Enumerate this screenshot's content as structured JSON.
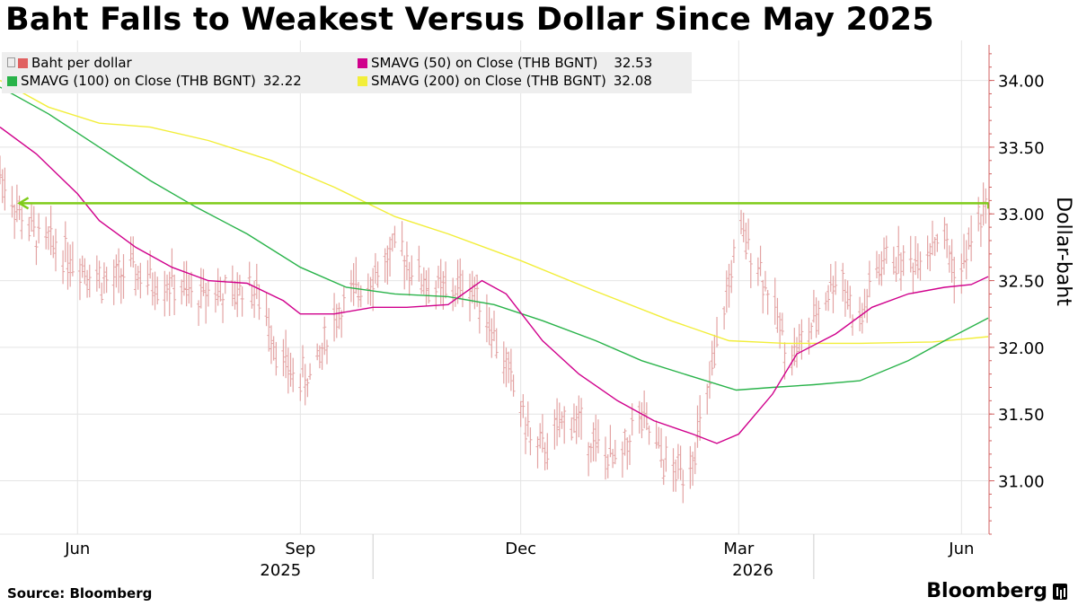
{
  "title": "Baht Falls to Weakest Versus Dollar Since May 2025",
  "source": "Source: Bloomberg",
  "brand": "Bloomberg",
  "chart_data": {
    "type": "line",
    "ylabel": "Dollar-baht",
    "ylim": [
      30.6,
      34.3
    ],
    "yticks": [
      31.0,
      31.5,
      32.0,
      32.5,
      33.0,
      33.5,
      34.0
    ],
    "ytick_labels": [
      "31.00",
      "31.50",
      "32.00",
      "32.50",
      "33.00",
      "33.50",
      "34.00"
    ],
    "x_range": [
      "2025-04-30",
      "2026-06-12"
    ],
    "month_ticks": [
      {
        "date": "2025-06-01",
        "label": "Jun"
      },
      {
        "date": "2025-09-01",
        "label": "Sep"
      },
      {
        "date": "2025-12-01",
        "label": "Dec"
      },
      {
        "date": "2026-03-01",
        "label": "Mar"
      },
      {
        "date": "2026-06-01",
        "label": "Jun"
      }
    ],
    "year_labels": [
      {
        "date": "2025-09-01",
        "label": "2025"
      },
      {
        "date": "2026-03-15",
        "label": "2026"
      }
    ],
    "year_dividers": [
      "2025-10-01",
      "2026-04-01"
    ],
    "grid": true,
    "reference_line": {
      "value": 33.08,
      "from": "2025-05-08",
      "to": "2026-06-12",
      "color": "#7fcc1a"
    },
    "legend": [
      {
        "name": "Baht per dollar",
        "value": "",
        "color": "#e06060",
        "style": "ohlc"
      },
      {
        "name": "SMAVG (50)  on Close (THB BGNT)",
        "value": "32.53",
        "color": "#d0008c"
      },
      {
        "name": "SMAVG (100)  on Close (THB BGNT)",
        "value": "32.22",
        "color": "#29b34a"
      },
      {
        "name": "SMAVG (200)  on Close (THB BGNT)",
        "value": "32.08",
        "color": "#f2ee3a"
      }
    ],
    "series": [
      {
        "name": "Baht per dollar",
        "kind": "ohlc",
        "color": "#e3a3a3",
        "points": [
          [
            "2025-04-30",
            33.3
          ],
          [
            "2025-05-08",
            33.0
          ],
          [
            "2025-05-16",
            32.8
          ],
          [
            "2025-05-24",
            32.75
          ],
          [
            "2025-06-01",
            32.65
          ],
          [
            "2025-06-08",
            32.55
          ],
          [
            "2025-06-15",
            32.45
          ],
          [
            "2025-06-22",
            32.6
          ],
          [
            "2025-06-29",
            32.5
          ],
          [
            "2025-07-06",
            32.5
          ],
          [
            "2025-07-13",
            32.45
          ],
          [
            "2025-07-20",
            32.35
          ],
          [
            "2025-07-27",
            32.45
          ],
          [
            "2025-08-03",
            32.35
          ],
          [
            "2025-08-10",
            32.5
          ],
          [
            "2025-08-17",
            32.3
          ],
          [
            "2025-08-24",
            31.9
          ],
          [
            "2025-08-31",
            31.75
          ],
          [
            "2025-09-07",
            31.8
          ],
          [
            "2025-09-14",
            32.2
          ],
          [
            "2025-09-21",
            32.35
          ],
          [
            "2025-09-28",
            32.5
          ],
          [
            "2025-10-05",
            32.6
          ],
          [
            "2025-10-12",
            32.75
          ],
          [
            "2025-10-19",
            32.55
          ],
          [
            "2025-10-26",
            32.45
          ],
          [
            "2025-11-02",
            32.4
          ],
          [
            "2025-11-09",
            32.5
          ],
          [
            "2025-11-16",
            32.3
          ],
          [
            "2025-11-23",
            31.95
          ],
          [
            "2025-11-30",
            31.6
          ],
          [
            "2025-12-07",
            31.2
          ],
          [
            "2025-12-14",
            31.3
          ],
          [
            "2025-12-21",
            31.5
          ],
          [
            "2025-12-28",
            31.35
          ],
          [
            "2026-01-04",
            31.2
          ],
          [
            "2026-01-11",
            31.1
          ],
          [
            "2026-01-18",
            31.5
          ],
          [
            "2026-01-25",
            31.3
          ],
          [
            "2026-02-01",
            31.05
          ],
          [
            "2026-02-08",
            31.1
          ],
          [
            "2026-02-15",
            31.5
          ],
          [
            "2026-02-22",
            32.2
          ],
          [
            "2026-03-01",
            32.85
          ],
          [
            "2026-03-08",
            32.7
          ],
          [
            "2026-03-15",
            32.3
          ],
          [
            "2026-03-22",
            31.95
          ],
          [
            "2026-03-29",
            32.05
          ],
          [
            "2026-04-05",
            32.35
          ],
          [
            "2026-04-12",
            32.6
          ],
          [
            "2026-04-19",
            32.1
          ],
          [
            "2026-04-26",
            32.55
          ],
          [
            "2026-05-03",
            32.7
          ],
          [
            "2026-05-10",
            32.6
          ],
          [
            "2026-05-17",
            32.75
          ],
          [
            "2026-05-24",
            32.85
          ],
          [
            "2026-05-31",
            32.5
          ],
          [
            "2026-06-07",
            32.95
          ],
          [
            "2026-06-11",
            33.0
          ]
        ]
      },
      {
        "name": "SMAVG (50)  on Close (THB BGNT)",
        "color": "#d0008c",
        "points": [
          [
            "2025-04-30",
            33.65
          ],
          [
            "2025-05-15",
            33.45
          ],
          [
            "2025-06-01",
            33.15
          ],
          [
            "2025-06-10",
            32.95
          ],
          [
            "2025-06-25",
            32.75
          ],
          [
            "2025-07-10",
            32.6
          ],
          [
            "2025-07-25",
            32.5
          ],
          [
            "2025-08-10",
            32.48
          ],
          [
            "2025-08-25",
            32.35
          ],
          [
            "2025-09-01",
            32.25
          ],
          [
            "2025-09-15",
            32.25
          ],
          [
            "2025-10-01",
            32.3
          ],
          [
            "2025-10-15",
            32.3
          ],
          [
            "2025-11-01",
            32.32
          ],
          [
            "2025-11-15",
            32.5
          ],
          [
            "2025-11-25",
            32.4
          ],
          [
            "2025-12-10",
            32.05
          ],
          [
            "2025-12-25",
            31.8
          ],
          [
            "2026-01-10",
            31.6
          ],
          [
            "2026-01-25",
            31.45
          ],
          [
            "2026-02-10",
            31.35
          ],
          [
            "2026-02-20",
            31.28
          ],
          [
            "2026-03-01",
            31.35
          ],
          [
            "2026-03-15",
            31.65
          ],
          [
            "2026-03-25",
            31.95
          ],
          [
            "2026-04-10",
            32.1
          ],
          [
            "2026-04-25",
            32.3
          ],
          [
            "2026-05-10",
            32.4
          ],
          [
            "2026-05-25",
            32.45
          ],
          [
            "2026-06-05",
            32.47
          ],
          [
            "2026-06-12",
            32.53
          ]
        ]
      },
      {
        "name": "SMAVG (100)  on Close (THB BGNT)",
        "color": "#29b34a",
        "points": [
          [
            "2025-04-30",
            33.95
          ],
          [
            "2025-05-20",
            33.75
          ],
          [
            "2025-06-10",
            33.5
          ],
          [
            "2025-07-01",
            33.25
          ],
          [
            "2025-07-20",
            33.05
          ],
          [
            "2025-08-10",
            32.85
          ],
          [
            "2025-09-01",
            32.6
          ],
          [
            "2025-09-20",
            32.45
          ],
          [
            "2025-10-10",
            32.4
          ],
          [
            "2025-11-01",
            32.38
          ],
          [
            "2025-11-20",
            32.32
          ],
          [
            "2025-12-10",
            32.2
          ],
          [
            "2026-01-01",
            32.05
          ],
          [
            "2026-01-20",
            31.9
          ],
          [
            "2026-02-10",
            31.78
          ],
          [
            "2026-02-28",
            31.68
          ],
          [
            "2026-03-15",
            31.7
          ],
          [
            "2026-04-01",
            31.72
          ],
          [
            "2026-04-20",
            31.75
          ],
          [
            "2026-05-10",
            31.9
          ],
          [
            "2026-05-25",
            32.05
          ],
          [
            "2026-06-12",
            32.22
          ]
        ]
      },
      {
        "name": "SMAVG (200)  on Close (THB BGNT)",
        "color": "#f2ee3a",
        "points": [
          [
            "2025-04-30",
            34.0
          ],
          [
            "2025-05-20",
            33.8
          ],
          [
            "2025-06-10",
            33.68
          ],
          [
            "2025-07-01",
            33.65
          ],
          [
            "2025-07-25",
            33.55
          ],
          [
            "2025-08-20",
            33.4
          ],
          [
            "2025-09-15",
            33.2
          ],
          [
            "2025-10-10",
            32.98
          ],
          [
            "2025-11-01",
            32.85
          ],
          [
            "2025-12-01",
            32.65
          ],
          [
            "2026-01-01",
            32.42
          ],
          [
            "2026-02-01",
            32.2
          ],
          [
            "2026-02-25",
            32.05
          ],
          [
            "2026-03-20",
            32.03
          ],
          [
            "2026-04-20",
            32.03
          ],
          [
            "2026-05-20",
            32.04
          ],
          [
            "2026-06-12",
            32.08
          ]
        ]
      }
    ]
  }
}
